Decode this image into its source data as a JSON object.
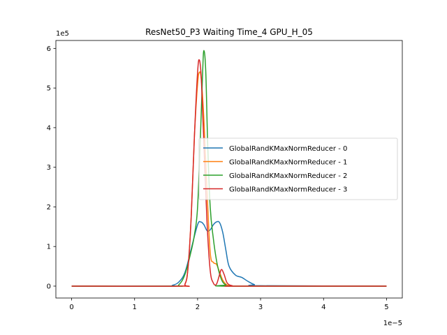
{
  "chart_data": {
    "type": "line",
    "title": "ResNet50_P3 Waiting Time_4 GPU_H_05",
    "xlabel": "",
    "ylabel": "",
    "x_scale_label": "1e−5",
    "y_scale_label": "1e5",
    "xlim": [
      -0.25,
      5.25
    ],
    "ylim": [
      -0.3,
      6.2
    ],
    "x_ticks": [
      0,
      1,
      2,
      3,
      4,
      5
    ],
    "y_ticks": [
      0,
      1,
      2,
      3,
      4,
      5,
      6
    ],
    "legend_position": "center-right",
    "grid": false,
    "series": [
      {
        "name": "GlobalRandKMaxNormReducer - 0",
        "color": "#1f77b4",
        "x": [
          0,
          1.5,
          1.6,
          1.7,
          1.8,
          1.9,
          2.0,
          2.05,
          2.1,
          2.15,
          2.2,
          2.25,
          2.3,
          2.35,
          2.4,
          2.45,
          2.5,
          2.6,
          2.7,
          2.8,
          2.9,
          3.0,
          5.0
        ],
        "y": [
          0,
          0,
          0.02,
          0.1,
          0.35,
          0.95,
          1.55,
          1.62,
          1.55,
          1.4,
          1.42,
          1.55,
          1.62,
          1.6,
          1.35,
          0.9,
          0.5,
          0.28,
          0.22,
          0.12,
          0.04,
          0.01,
          0
        ]
      },
      {
        "name": "GlobalRandKMaxNormReducer - 1",
        "color": "#ff7f0e",
        "x": [
          0,
          1.7,
          1.8,
          1.85,
          1.9,
          1.95,
          2.0,
          2.03,
          2.06,
          2.1,
          2.15,
          2.2,
          2.25,
          2.3,
          2.35,
          2.4,
          2.45,
          2.5,
          2.6,
          5.0
        ],
        "y": [
          0,
          0,
          0.05,
          0.5,
          1.8,
          3.8,
          5.1,
          5.4,
          5.2,
          4.2,
          2.4,
          0.85,
          0.6,
          0.55,
          0.35,
          0.15,
          0.05,
          0.01,
          0,
          0
        ]
      },
      {
        "name": "GlobalRandKMaxNormReducer - 2",
        "color": "#2ca02c",
        "x": [
          0,
          1.6,
          1.7,
          1.8,
          1.9,
          1.95,
          2.0,
          2.05,
          2.08,
          2.1,
          2.13,
          2.16,
          2.2,
          2.25,
          2.3,
          2.35,
          2.4,
          2.45,
          2.5,
          5.0
        ],
        "y": [
          0,
          0,
          0.03,
          0.3,
          0.9,
          1.3,
          2.0,
          4.0,
          5.4,
          5.95,
          5.4,
          3.6,
          2.0,
          1.2,
          0.65,
          0.3,
          0.1,
          0.03,
          0,
          0
        ]
      },
      {
        "name": "GlobalRandKMaxNormReducer - 3",
        "color": "#d62728",
        "x": [
          0,
          1.7,
          1.8,
          1.85,
          1.9,
          1.95,
          2.0,
          2.03,
          2.06,
          2.1,
          2.15,
          2.2,
          2.25,
          2.3,
          2.35,
          2.38,
          2.42,
          2.47,
          2.55,
          2.65,
          5.0
        ],
        "y": [
          0,
          0,
          0.05,
          0.5,
          1.8,
          3.8,
          5.4,
          5.7,
          5.2,
          3.6,
          1.6,
          0.4,
          0.08,
          0.05,
          0.3,
          0.42,
          0.3,
          0.08,
          0.01,
          0,
          0
        ]
      }
    ]
  }
}
